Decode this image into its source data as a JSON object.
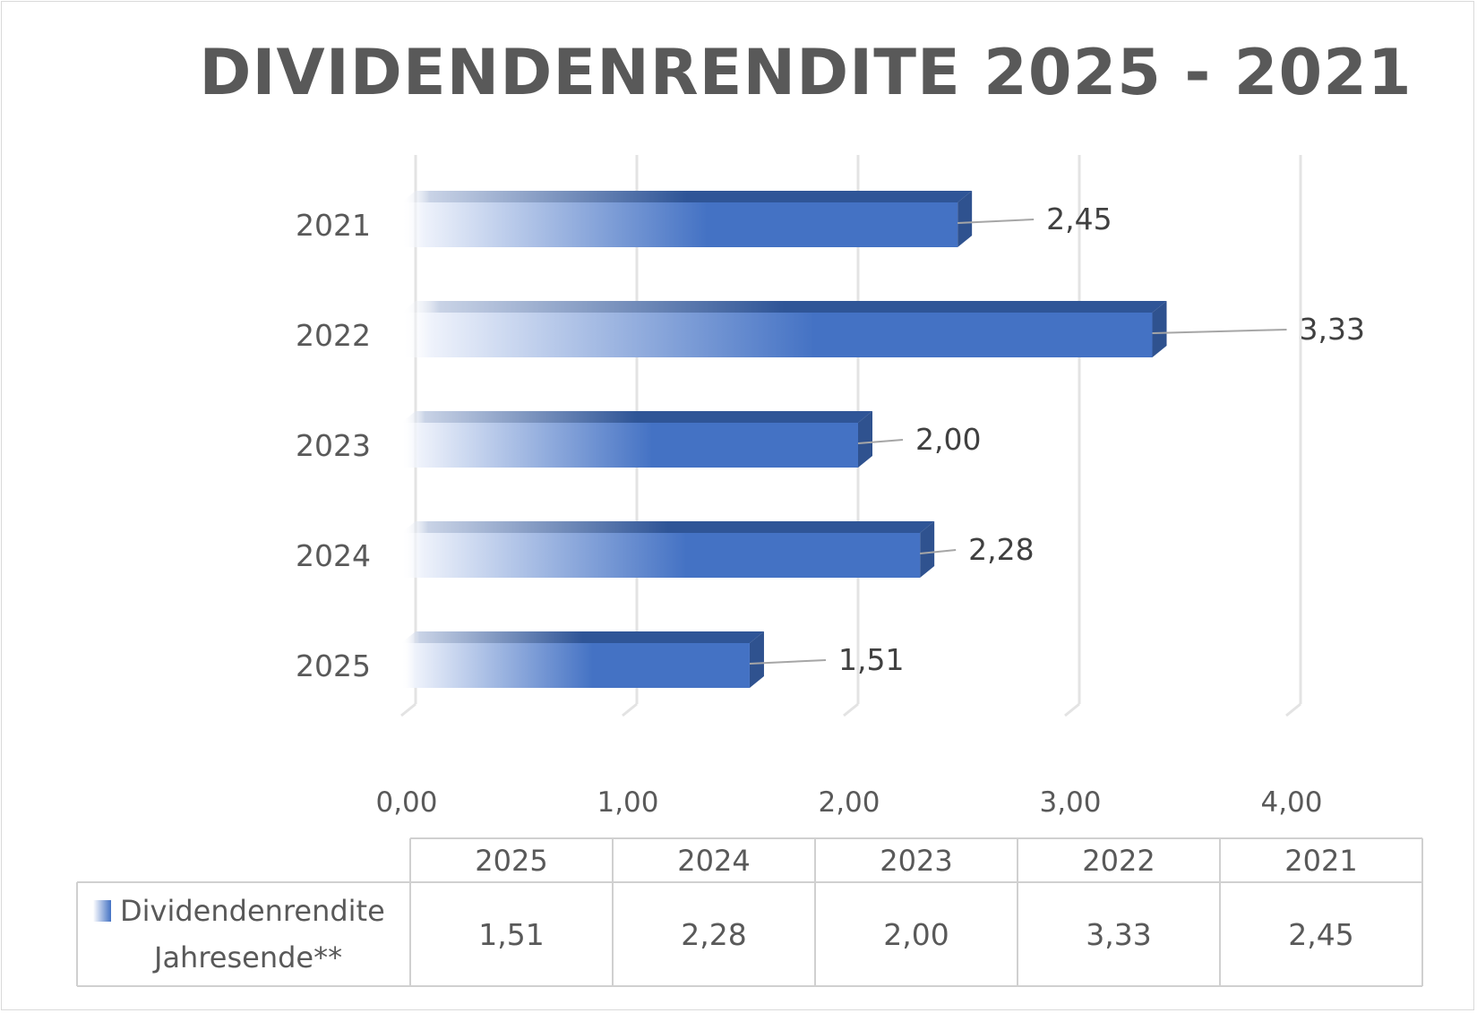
{
  "chart_data": {
    "type": "bar",
    "orientation": "horizontal",
    "style": "3d",
    "title": "DIVIDENDENRENDITE 2025 - 2021",
    "categories": [
      "2025",
      "2024",
      "2023",
      "2022",
      "2021"
    ],
    "series": [
      {
        "name": "Dividendenrendite Jahresende**",
        "values": [
          1.51,
          2.28,
          2.0,
          3.33,
          2.45
        ],
        "color": "#4472c4"
      }
    ],
    "value_labels": [
      "1,51",
      "2,28",
      "2,00",
      "3,33",
      "2,45"
    ],
    "xlim": [
      0,
      4
    ],
    "x_ticks": [
      "0,00",
      "1,00",
      "2,00",
      "3,00",
      "4,00"
    ],
    "grid": true,
    "data_table": {
      "header": [
        "2025",
        "2024",
        "2023",
        "2022",
        "2021"
      ],
      "row_label_line1": "Dividendenrendite",
      "row_label_line2": "Jahresende**",
      "row_values": [
        "1,51",
        "2,28",
        "2,00",
        "3,33",
        "2,45"
      ]
    }
  }
}
